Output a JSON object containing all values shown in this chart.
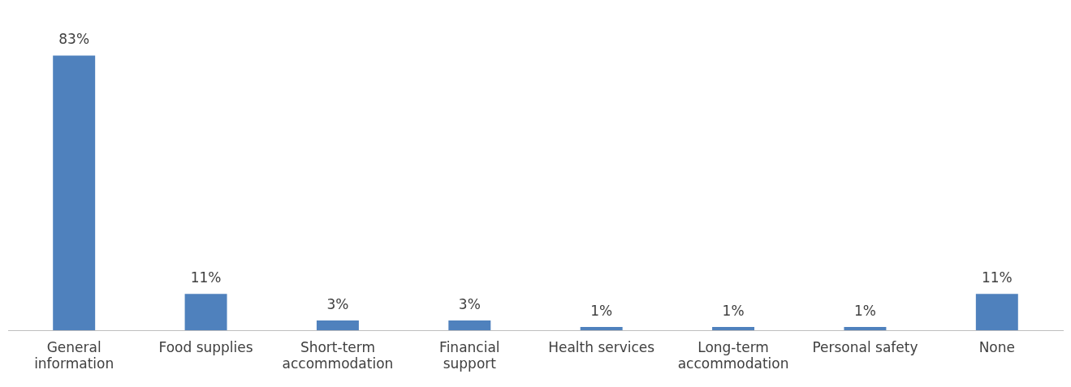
{
  "chart_data": {
    "type": "bar",
    "categories": [
      "General information",
      "Food supplies",
      "Short-term accommodation",
      "Financial support",
      "Health services",
      "Long-term accommodation",
      "Personal safety",
      "None"
    ],
    "values": [
      83,
      11,
      3,
      3,
      1,
      1,
      1,
      11
    ],
    "value_labels": [
      "83%",
      "11%",
      "3%",
      "3%",
      "1%",
      "1%",
      "1%",
      "11%"
    ],
    "color": "#4f81bd",
    "grid": false,
    "legend": false,
    "tick_labels": "x"
  }
}
